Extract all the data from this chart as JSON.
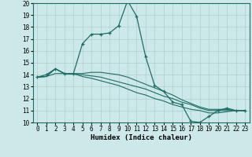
{
  "xlabel": "Humidex (Indice chaleur)",
  "ylabel": "",
  "xlim": [
    -0.5,
    23.5
  ],
  "ylim": [
    10,
    20
  ],
  "yticks": [
    10,
    11,
    12,
    13,
    14,
    15,
    16,
    17,
    18,
    19,
    20
  ],
  "xticks": [
    0,
    1,
    2,
    3,
    4,
    5,
    6,
    7,
    8,
    9,
    10,
    11,
    12,
    13,
    14,
    15,
    16,
    17,
    18,
    19,
    20,
    21,
    22,
    23
  ],
  "background_color": "#cde8e8",
  "line_color": "#1a6e65",
  "grid_color": "#aecfcf",
  "lines": [
    {
      "x": [
        0,
        1,
        2,
        3,
        4,
        5,
        6,
        7,
        8,
        9,
        10,
        11,
        12,
        13,
        14,
        15,
        16,
        17,
        18,
        19,
        20,
        21,
        22,
        23
      ],
      "y": [
        13.8,
        14.0,
        14.5,
        14.1,
        14.1,
        16.6,
        17.4,
        17.4,
        17.5,
        18.1,
        20.2,
        18.9,
        15.5,
        13.1,
        12.6,
        11.7,
        11.5,
        10.1,
        10.0,
        10.5,
        11.0,
        11.2,
        11.0,
        11.0
      ],
      "marker": true
    },
    {
      "x": [
        0,
        1,
        2,
        3,
        4,
        5,
        6,
        7,
        8,
        9,
        10,
        11,
        12,
        13,
        14,
        15,
        16,
        17,
        18,
        19,
        20,
        21,
        22,
        23
      ],
      "y": [
        13.8,
        13.85,
        14.1,
        14.1,
        14.05,
        14.0,
        13.9,
        13.8,
        13.6,
        13.4,
        13.2,
        13.0,
        12.8,
        12.5,
        12.2,
        12.0,
        11.7,
        11.5,
        11.2,
        11.0,
        11.0,
        11.0,
        11.0,
        11.0
      ],
      "marker": false
    },
    {
      "x": [
        0,
        1,
        2,
        3,
        4,
        5,
        6,
        7,
        8,
        9,
        10,
        11,
        12,
        13,
        14,
        15,
        16,
        17,
        18,
        19,
        20,
        21,
        22,
        23
      ],
      "y": [
        13.8,
        13.85,
        14.5,
        14.1,
        14.1,
        14.1,
        14.2,
        14.2,
        14.1,
        14.0,
        13.8,
        13.5,
        13.2,
        12.9,
        12.6,
        12.3,
        11.9,
        11.6,
        11.3,
        11.1,
        11.1,
        11.1,
        11.0,
        11.0
      ],
      "marker": false
    },
    {
      "x": [
        0,
        1,
        2,
        3,
        4,
        5,
        6,
        7,
        8,
        9,
        10,
        11,
        12,
        13,
        14,
        15,
        16,
        17,
        18,
        19,
        20,
        21,
        22,
        23
      ],
      "y": [
        13.8,
        13.85,
        14.5,
        14.1,
        14.1,
        13.85,
        13.7,
        13.5,
        13.3,
        13.1,
        12.8,
        12.5,
        12.3,
        12.0,
        11.8,
        11.5,
        11.3,
        11.1,
        11.0,
        10.8,
        10.8,
        10.9,
        11.0,
        11.0
      ],
      "marker": false
    }
  ]
}
